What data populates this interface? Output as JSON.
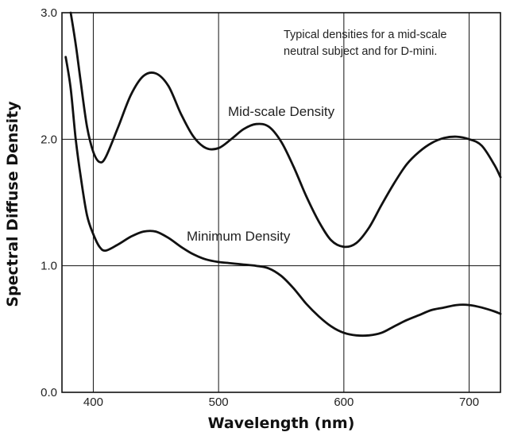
{
  "chart_data": {
    "type": "line",
    "title": "",
    "xlabel": "Wavelength (nm)",
    "ylabel": "Spectral Diffuse Density",
    "xlim": [
      375,
      725
    ],
    "ylim": [
      0.0,
      3.0
    ],
    "x_ticks": [
      {
        "value": 400,
        "label": "400"
      },
      {
        "value": 500,
        "label": "500"
      },
      {
        "value": 600,
        "label": "600"
      },
      {
        "value": 700,
        "label": "700"
      }
    ],
    "y_ticks": [
      {
        "value": 0.0,
        "label": "0.0"
      },
      {
        "value": 1.0,
        "label": "1.0"
      },
      {
        "value": 2.0,
        "label": "2.0"
      },
      {
        "value": 3.0,
        "label": "3.0"
      }
    ],
    "grid": true,
    "annotation": [
      "Typical densities for a mid-scale",
      "neutral subject and for D-mini."
    ],
    "series": [
      {
        "name": "Mid-scale Density",
        "x": [
          382,
          386,
          390,
          395,
          400,
          405,
          410,
          420,
          430,
          440,
          450,
          460,
          470,
          480,
          490,
          500,
          510,
          520,
          530,
          540,
          550,
          560,
          570,
          580,
          590,
          600,
          610,
          620,
          630,
          640,
          650,
          660,
          670,
          680,
          690,
          700,
          710,
          720,
          725
        ],
        "y": [
          3.0,
          2.75,
          2.45,
          2.1,
          1.9,
          1.82,
          1.86,
          2.1,
          2.35,
          2.5,
          2.52,
          2.42,
          2.2,
          2.02,
          1.93,
          1.93,
          2.0,
          2.08,
          2.12,
          2.1,
          1.98,
          1.78,
          1.55,
          1.35,
          1.2,
          1.15,
          1.18,
          1.3,
          1.48,
          1.65,
          1.8,
          1.9,
          1.97,
          2.01,
          2.02,
          2.0,
          1.95,
          1.8,
          1.7
        ]
      },
      {
        "name": "Minimum Density",
        "x": [
          378,
          382,
          386,
          390,
          395,
          400,
          405,
          410,
          420,
          430,
          440,
          450,
          460,
          470,
          480,
          490,
          500,
          510,
          520,
          530,
          540,
          550,
          560,
          570,
          580,
          590,
          600,
          610,
          620,
          630,
          640,
          650,
          660,
          670,
          680,
          690,
          700,
          710,
          720,
          725
        ],
        "y": [
          2.65,
          2.4,
          2.0,
          1.7,
          1.4,
          1.25,
          1.15,
          1.12,
          1.17,
          1.23,
          1.27,
          1.27,
          1.22,
          1.15,
          1.09,
          1.05,
          1.03,
          1.02,
          1.01,
          1.0,
          0.98,
          0.92,
          0.82,
          0.7,
          0.6,
          0.52,
          0.47,
          0.45,
          0.45,
          0.47,
          0.52,
          0.57,
          0.61,
          0.65,
          0.67,
          0.69,
          0.69,
          0.67,
          0.64,
          0.62
        ]
      }
    ]
  },
  "labels": {
    "mid_scale": "Mid-scale Density",
    "minimum": "Minimum Density"
  }
}
